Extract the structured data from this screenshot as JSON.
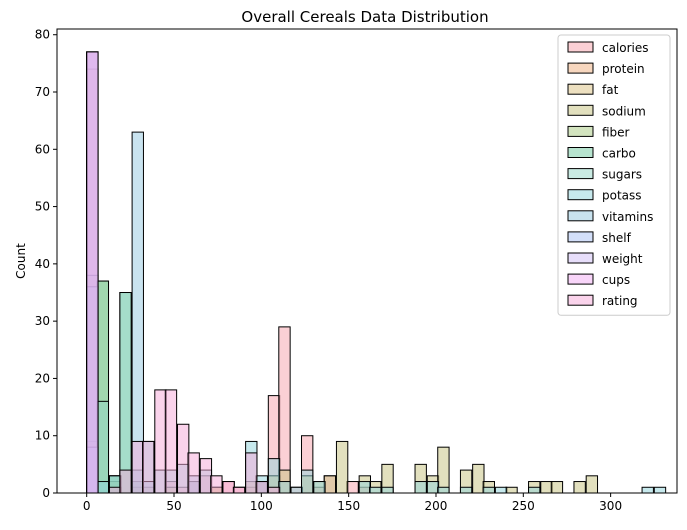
{
  "chart_data": {
    "type": "bar",
    "title": "Overall Cereals Data Distribution",
    "xlabel": "",
    "ylabel": "Count",
    "xlim": [
      -17,
      338
    ],
    "ylim": [
      0,
      81
    ],
    "xticks": [
      0,
      50,
      100,
      150,
      200,
      250,
      300
    ],
    "yticks": [
      0,
      10,
      20,
      30,
      40,
      50,
      60,
      70,
      80
    ],
    "bin_width": 6.5,
    "grid": false,
    "legend_position": "top-right",
    "series": [
      {
        "name": "calories",
        "color": "#f7a1ac",
        "bars": [
          [
            45,
            2
          ],
          [
            52,
            1
          ],
          [
            58,
            2
          ],
          [
            65,
            3
          ],
          [
            71,
            1
          ],
          [
            78,
            2
          ],
          [
            84,
            1
          ],
          [
            91,
            1
          ],
          [
            97,
            2
          ],
          [
            104,
            17
          ],
          [
            110,
            29
          ],
          [
            117,
            1
          ],
          [
            123,
            10
          ],
          [
            130,
            1
          ],
          [
            136,
            3
          ],
          [
            149,
            2
          ],
          [
            156,
            1
          ]
        ]
      },
      {
        "name": "protein",
        "color": "#f0b07f",
        "bars": [
          [
            0,
            74
          ]
        ]
      },
      {
        "name": "fat",
        "color": "#dcc182",
        "bars": [
          [
            0,
            77
          ]
        ]
      },
      {
        "name": "sodium",
        "color": "#c6c27e",
        "bars": [
          [
            0,
            9
          ],
          [
            13,
            2
          ],
          [
            26,
            1
          ],
          [
            32,
            1
          ],
          [
            45,
            1
          ],
          [
            71,
            1
          ],
          [
            91,
            2
          ],
          [
            97,
            2
          ],
          [
            104,
            3
          ],
          [
            110,
            4
          ],
          [
            123,
            3
          ],
          [
            130,
            2
          ],
          [
            136,
            3
          ],
          [
            143,
            9
          ],
          [
            156,
            3
          ],
          [
            162,
            2
          ],
          [
            169,
            5
          ],
          [
            188,
            5
          ],
          [
            195,
            3
          ],
          [
            201,
            8
          ],
          [
            214,
            4
          ],
          [
            221,
            5
          ],
          [
            227,
            2
          ],
          [
            240,
            1
          ],
          [
            253,
            2
          ],
          [
            260,
            2
          ],
          [
            266,
            2
          ],
          [
            279,
            2
          ],
          [
            286,
            3
          ]
        ]
      },
      {
        "name": "fiber",
        "color": "#a7c97f",
        "bars": [
          [
            0,
            38
          ],
          [
            6,
            37
          ],
          [
            13,
            3
          ]
        ]
      },
      {
        "name": "carbo",
        "color": "#6fc9a0",
        "bars": [
          [
            6,
            37
          ],
          [
            13,
            3
          ],
          [
            19,
            35
          ],
          [
            26,
            2
          ]
        ]
      },
      {
        "name": "sugars",
        "color": "#93d5c5",
        "bars": [
          [
            0,
            36
          ],
          [
            6,
            16
          ],
          [
            19,
            35
          ]
        ]
      },
      {
        "name": "potass",
        "color": "#8fd4dc",
        "bars": [
          [
            6,
            2
          ],
          [
            13,
            3
          ],
          [
            26,
            4
          ],
          [
            32,
            9
          ],
          [
            39,
            4
          ],
          [
            45,
            4
          ],
          [
            52,
            5
          ],
          [
            58,
            2
          ],
          [
            65,
            4
          ],
          [
            91,
            9
          ],
          [
            97,
            3
          ],
          [
            104,
            6
          ],
          [
            110,
            2
          ],
          [
            117,
            1
          ],
          [
            123,
            4
          ],
          [
            130,
            2
          ],
          [
            156,
            2
          ],
          [
            162,
            1
          ],
          [
            169,
            1
          ],
          [
            188,
            2
          ],
          [
            195,
            2
          ],
          [
            201,
            1
          ],
          [
            214,
            1
          ],
          [
            227,
            1
          ],
          [
            234,
            1
          ],
          [
            253,
            1
          ],
          [
            318,
            1
          ],
          [
            325,
            1
          ]
        ]
      },
      {
        "name": "vitamins",
        "color": "#93c8e0",
        "bars": [
          [
            0,
            8
          ],
          [
            26,
            63
          ],
          [
            32,
            2
          ],
          [
            58,
            3
          ],
          [
            97,
            2
          ]
        ]
      },
      {
        "name": "shelf",
        "color": "#a7c0f4",
        "bars": [
          [
            0,
            77
          ]
        ]
      },
      {
        "name": "weight",
        "color": "#cfbdf6",
        "bars": [
          [
            0,
            77
          ]
        ]
      },
      {
        "name": "cups",
        "color": "#f1acf4",
        "bars": [
          [
            0,
            77
          ]
        ]
      },
      {
        "name": "rating",
        "color": "#f6a7d8",
        "bars": [
          [
            13,
            1
          ],
          [
            19,
            4
          ],
          [
            26,
            9
          ],
          [
            32,
            9
          ],
          [
            39,
            18
          ],
          [
            45,
            18
          ],
          [
            52,
            12
          ],
          [
            58,
            7
          ],
          [
            65,
            6
          ],
          [
            71,
            3
          ],
          [
            78,
            2
          ],
          [
            84,
            1
          ],
          [
            91,
            7
          ],
          [
            97,
            2
          ],
          [
            104,
            1
          ]
        ]
      }
    ]
  }
}
